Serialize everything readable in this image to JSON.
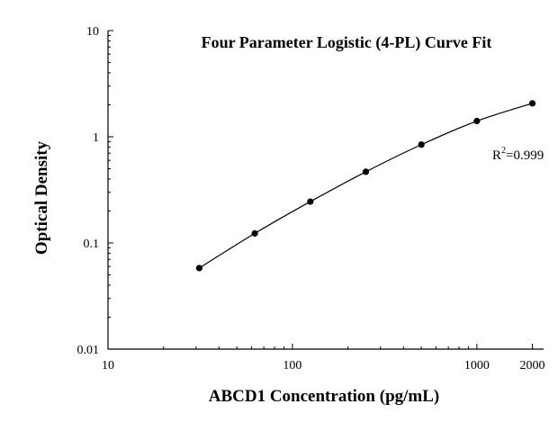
{
  "chart_data": {
    "type": "scatter",
    "title": "Four Parameter Logistic (4-PL) Curve Fit",
    "xlabel": "ABCD1 Concentration (pg/mL)",
    "ylabel": "Optical Density",
    "x_scale": "log",
    "y_scale": "log",
    "xlim": [
      10,
      2300
    ],
    "ylim": [
      0.01,
      10
    ],
    "x_ticks": [
      {
        "value": 10,
        "label": "10"
      },
      {
        "value": 100,
        "label": "100"
      },
      {
        "value": 1000,
        "label": "1000"
      },
      {
        "value": 2000,
        "label": "2000"
      }
    ],
    "y_ticks": [
      {
        "value": 0.01,
        "label": "0.01"
      },
      {
        "value": 0.1,
        "label": "0.1"
      },
      {
        "value": 1,
        "label": "1"
      },
      {
        "value": 10,
        "label": "10"
      }
    ],
    "series": [
      {
        "x": [
          31.25,
          62.5,
          125,
          250,
          500,
          1000,
          2000
        ],
        "y": [
          0.058,
          0.123,
          0.245,
          0.468,
          0.843,
          1.407,
          2.064
        ]
      }
    ],
    "annotation": {
      "base": "R",
      "sup": "2",
      "rest": "=0.999"
    },
    "grid": false,
    "legend": "none"
  }
}
